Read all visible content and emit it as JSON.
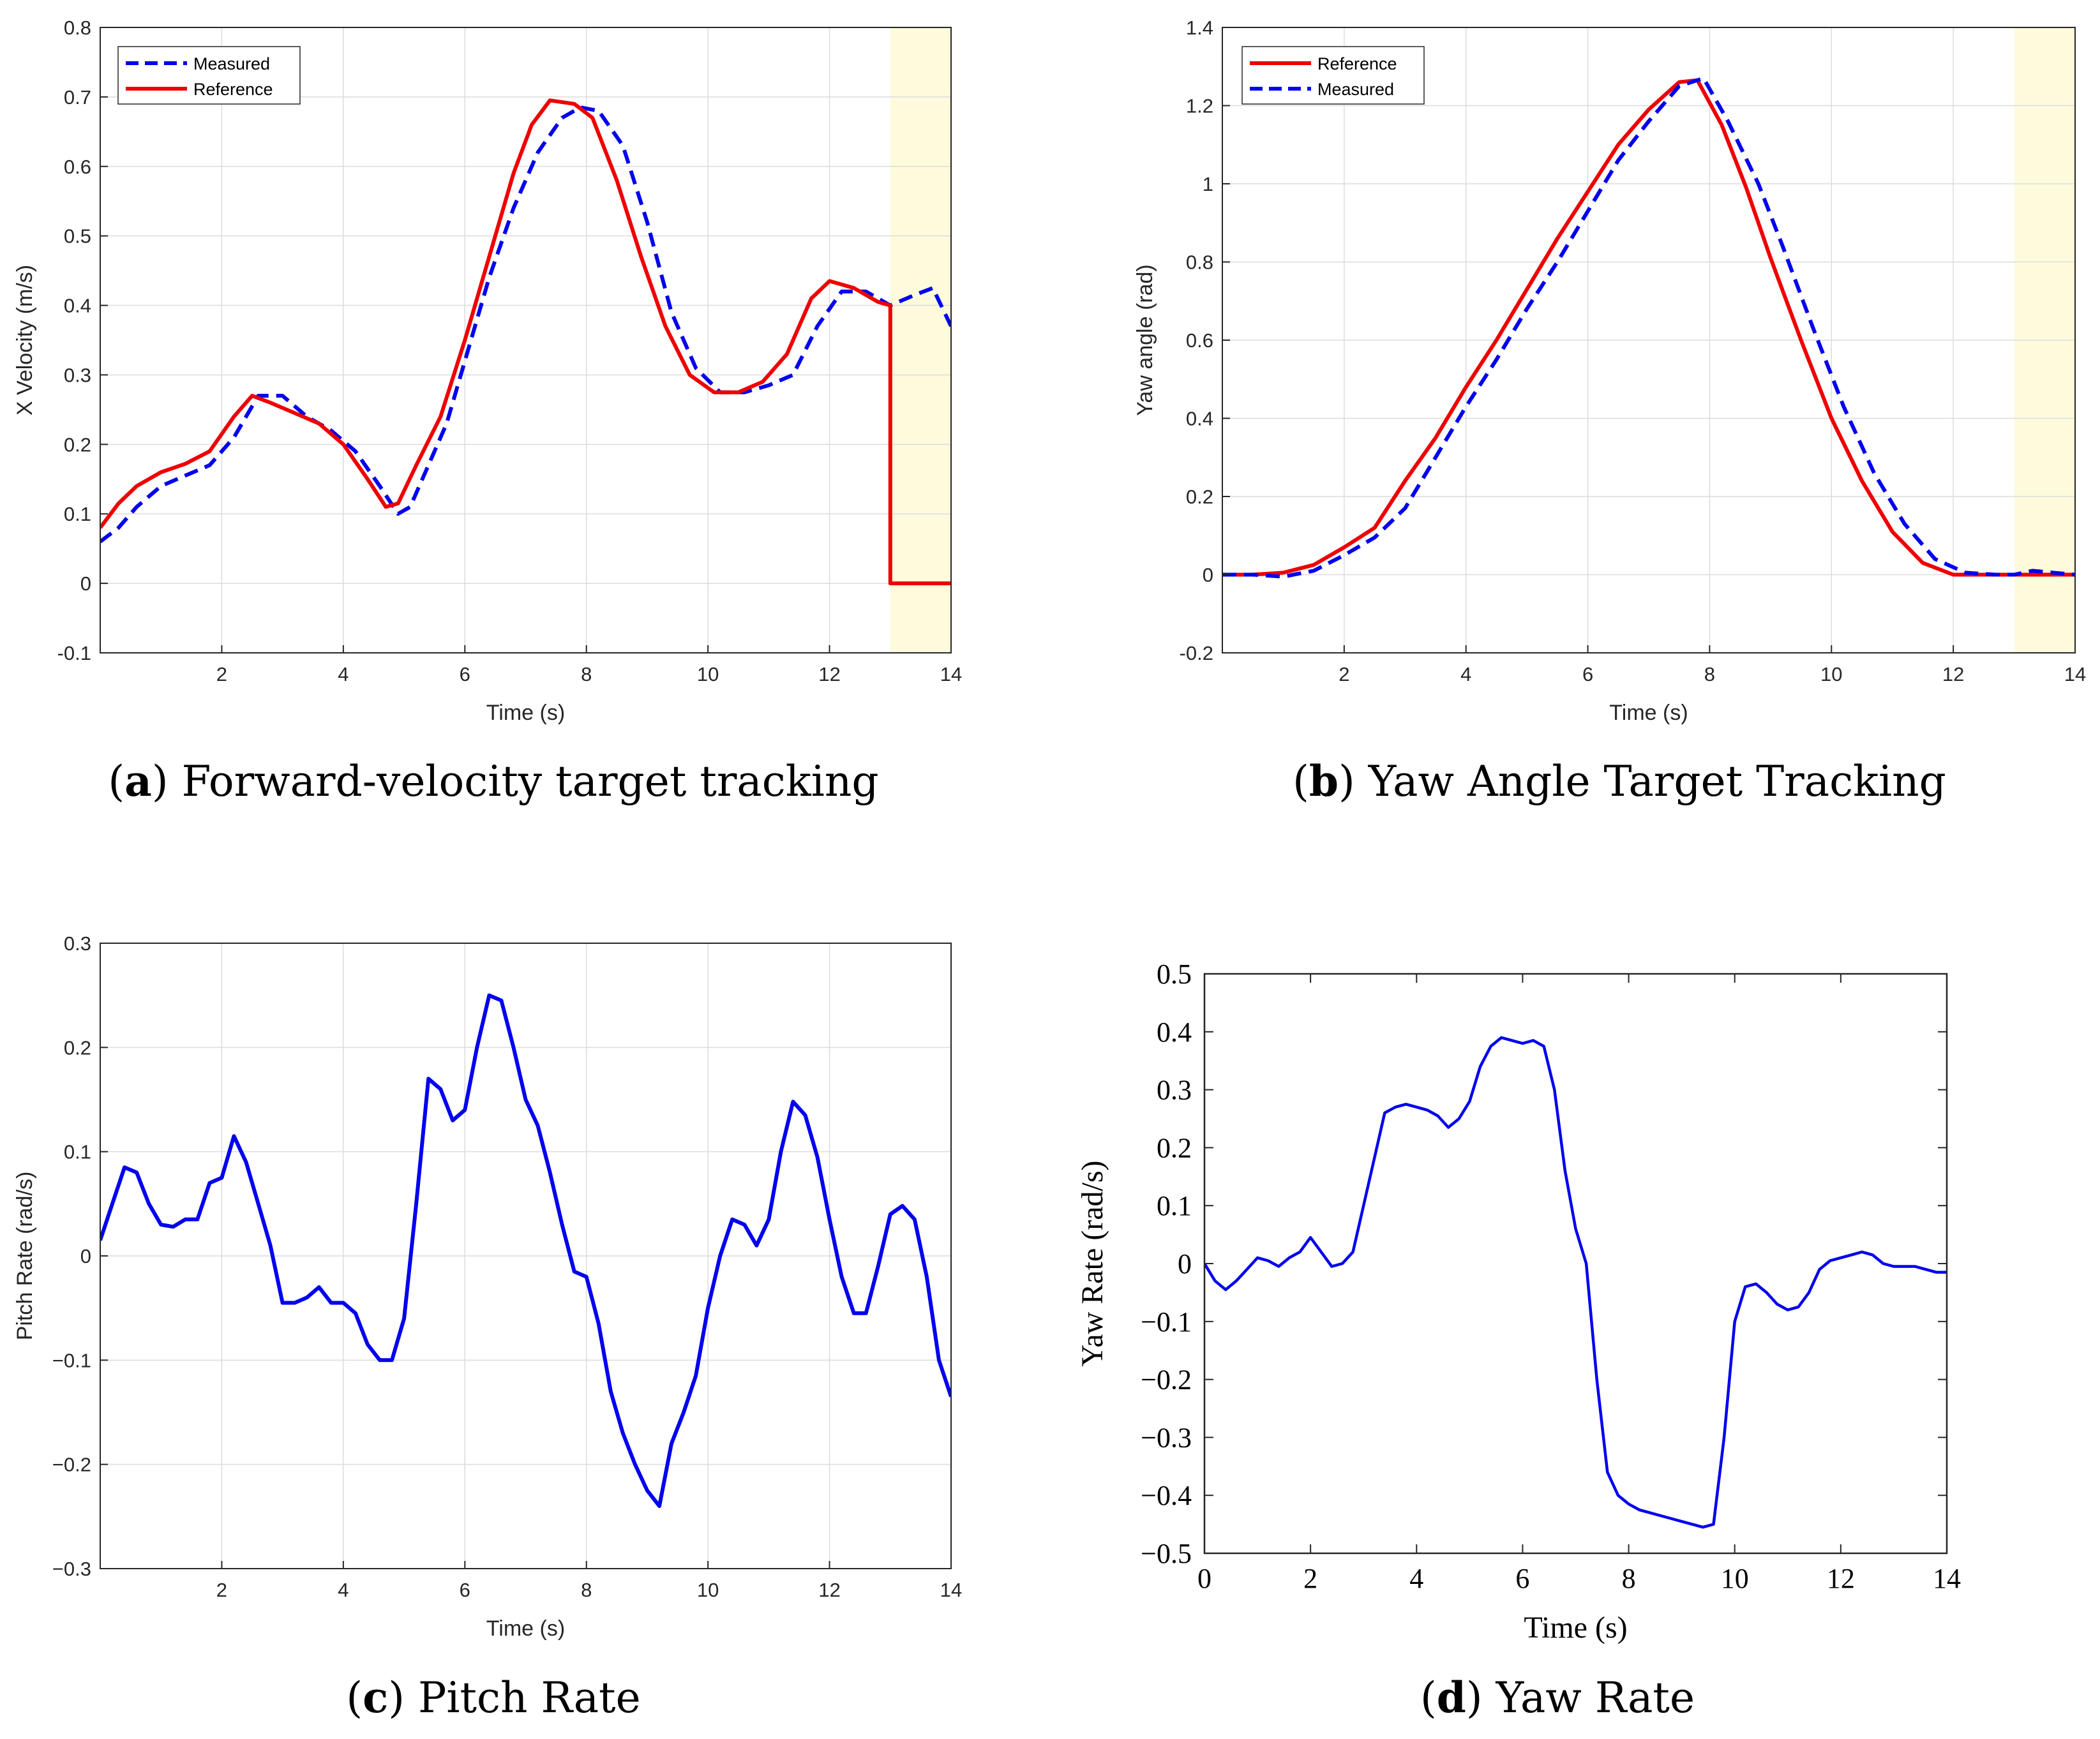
{
  "colors": {
    "measured": "#0000ee",
    "reference": "#ee0000",
    "grid": "#dcdcdc",
    "highlight": "#fdfbdc",
    "axis": "#262626"
  },
  "chart_data": [
    {
      "id": "a",
      "type": "line",
      "caption": {
        "label": "a",
        "text": "Forward-velocity target tracking"
      },
      "xlabel": "Time (s)",
      "ylabel": "X Velocity (m/s)",
      "xlim": [
        0,
        14
      ],
      "ylim": [
        -0.1,
        0.8
      ],
      "xticks": [
        2,
        4,
        6,
        8,
        10,
        12,
        14
      ],
      "xtick_labels": [
        "2",
        "4",
        "6",
        "8",
        "10",
        "12",
        "14"
      ],
      "yticks": [
        -0.1,
        0,
        0.1,
        0.2,
        0.3,
        0.4,
        0.5,
        0.6,
        0.7,
        0.8
      ],
      "ytick_labels": [
        "-0.1",
        "0",
        "0.1",
        "0.2",
        "0.3",
        "0.4",
        "0.5",
        "0.6",
        "0.7",
        "0.8"
      ],
      "grid": true,
      "legend_position": "top-left",
      "highlight_x": [
        13,
        14
      ],
      "series": [
        {
          "name": "Measured",
          "style": "dashed",
          "color": "#0000ee",
          "x": [
            0,
            0.3,
            0.6,
            1.0,
            1.4,
            1.8,
            2.2,
            2.6,
            3.0,
            3.4,
            3.8,
            4.2,
            4.6,
            4.9,
            5.1,
            5.4,
            5.7,
            6.0,
            6.4,
            6.8,
            7.2,
            7.6,
            7.9,
            8.2,
            8.6,
            9.0,
            9.4,
            9.8,
            10.2,
            10.6,
            11.0,
            11.4,
            11.8,
            12.2,
            12.6,
            13.0,
            13.4,
            13.7,
            14.0
          ],
          "y": [
            0.06,
            0.08,
            0.11,
            0.14,
            0.155,
            0.17,
            0.21,
            0.27,
            0.27,
            0.24,
            0.22,
            0.19,
            0.14,
            0.1,
            0.11,
            0.17,
            0.23,
            0.32,
            0.44,
            0.54,
            0.62,
            0.67,
            0.685,
            0.68,
            0.63,
            0.52,
            0.39,
            0.31,
            0.275,
            0.275,
            0.285,
            0.3,
            0.37,
            0.42,
            0.42,
            0.4,
            0.415,
            0.425,
            0.37
          ]
        },
        {
          "name": "Reference",
          "style": "solid",
          "color": "#ee0000",
          "x": [
            0,
            0.3,
            0.6,
            1.0,
            1.4,
            1.8,
            2.2,
            2.5,
            2.8,
            3.2,
            3.6,
            4.0,
            4.4,
            4.7,
            4.9,
            5.2,
            5.6,
            6.0,
            6.4,
            6.8,
            7.1,
            7.4,
            7.8,
            8.1,
            8.5,
            8.9,
            9.3,
            9.7,
            10.1,
            10.5,
            10.9,
            11.3,
            11.7,
            12.0,
            12.4,
            12.8,
            13.0,
            13.0,
            14.0
          ],
          "y": [
            0.08,
            0.115,
            0.14,
            0.16,
            0.172,
            0.19,
            0.24,
            0.27,
            0.26,
            0.245,
            0.23,
            0.2,
            0.15,
            0.11,
            0.115,
            0.17,
            0.24,
            0.35,
            0.47,
            0.59,
            0.66,
            0.695,
            0.69,
            0.67,
            0.58,
            0.47,
            0.37,
            0.3,
            0.275,
            0.275,
            0.29,
            0.33,
            0.41,
            0.435,
            0.425,
            0.405,
            0.4,
            0.0,
            0.0
          ]
        }
      ]
    },
    {
      "id": "b",
      "type": "line",
      "caption": {
        "label": "b",
        "text": "Yaw Angle Target Tracking"
      },
      "xlabel": "Time (s)",
      "ylabel": "Yaw angle (rad)",
      "xlim": [
        0,
        14
      ],
      "ylim": [
        -0.2,
        1.4
      ],
      "xticks": [
        2,
        4,
        6,
        8,
        10,
        12,
        14
      ],
      "xtick_labels": [
        "2",
        "4",
        "6",
        "8",
        "10",
        "12",
        "14"
      ],
      "yticks": [
        -0.2,
        0,
        0.2,
        0.4,
        0.6,
        0.8,
        1,
        1.2,
        1.4
      ],
      "ytick_labels": [
        "-0.2",
        "0",
        "0.2",
        "0.4",
        "0.6",
        "0.8",
        "1",
        "1.2",
        "1.4"
      ],
      "grid": true,
      "legend_position": "top-left",
      "highlight_x": [
        13,
        14
      ],
      "series": [
        {
          "name": "Reference",
          "style": "solid",
          "color": "#ee0000",
          "x": [
            0,
            0.5,
            1.0,
            1.5,
            2.0,
            2.5,
            3.0,
            3.5,
            4.0,
            4.5,
            5.0,
            5.5,
            6.0,
            6.5,
            7.0,
            7.5,
            7.8,
            8.2,
            8.6,
            9.0,
            9.5,
            10.0,
            10.5,
            11.0,
            11.5,
            12.0,
            12.5,
            13.0,
            14.0
          ],
          "y": [
            0,
            0,
            0.005,
            0.025,
            0.07,
            0.12,
            0.24,
            0.35,
            0.48,
            0.6,
            0.73,
            0.86,
            0.98,
            1.1,
            1.19,
            1.26,
            1.265,
            1.15,
            0.99,
            0.81,
            0.6,
            0.4,
            0.24,
            0.11,
            0.03,
            0.0,
            0.0,
            0.0,
            0.0
          ]
        },
        {
          "name": "Measured",
          "style": "dashed",
          "color": "#0000ee",
          "x": [
            0,
            0.5,
            1.0,
            1.5,
            2.0,
            2.5,
            3.0,
            3.5,
            4.0,
            4.5,
            5.0,
            5.5,
            6.0,
            6.5,
            7.0,
            7.5,
            7.9,
            8.3,
            8.8,
            9.2,
            9.7,
            10.2,
            10.7,
            11.2,
            11.7,
            12.2,
            12.7,
            13.0,
            13.3,
            14.0
          ],
          "y": [
            0,
            0,
            -0.005,
            0.01,
            0.05,
            0.095,
            0.17,
            0.3,
            0.43,
            0.55,
            0.68,
            0.8,
            0.93,
            1.06,
            1.16,
            1.25,
            1.27,
            1.16,
            1.0,
            0.84,
            0.63,
            0.43,
            0.26,
            0.13,
            0.04,
            0.005,
            0.0,
            0.0,
            0.01,
            0.0
          ]
        }
      ]
    },
    {
      "id": "c",
      "type": "line",
      "caption": {
        "label": "c",
        "text": "Pitch Rate"
      },
      "xlabel": "Time (s)",
      "ylabel": "Pitch Rate (rad/s)",
      "xlim": [
        0,
        14
      ],
      "ylim": [
        -0.3,
        0.3
      ],
      "xticks": [
        2,
        4,
        6,
        8,
        10,
        12,
        14
      ],
      "xtick_labels": [
        "2",
        "4",
        "6",
        "8",
        "10",
        "12",
        "14"
      ],
      "yticks": [
        -0.3,
        -0.2,
        -0.1,
        0,
        0.1,
        0.2,
        0.3
      ],
      "ytick_labels": [
        "−0.3",
        "−0.2",
        "−0.1",
        "0",
        "0.1",
        "0.2",
        "0.3"
      ],
      "grid": true,
      "series": [
        {
          "name": "Pitch Rate",
          "style": "solid",
          "color": "#0000ee",
          "x": [
            0,
            0.2,
            0.4,
            0.6,
            0.8,
            1.0,
            1.2,
            1.4,
            1.6,
            1.8,
            2.0,
            2.2,
            2.4,
            2.6,
            2.8,
            3.0,
            3.2,
            3.4,
            3.6,
            3.8,
            4.0,
            4.2,
            4.4,
            4.6,
            4.8,
            5.0,
            5.2,
            5.4,
            5.6,
            5.8,
            6.0,
            6.2,
            6.4,
            6.6,
            6.8,
            7.0,
            7.2,
            7.4,
            7.6,
            7.8,
            8.0,
            8.2,
            8.4,
            8.6,
            8.8,
            9.0,
            9.2,
            9.4,
            9.6,
            9.8,
            10.0,
            10.2,
            10.4,
            10.6,
            10.8,
            11.0,
            11.2,
            11.4,
            11.6,
            11.8,
            12.0,
            12.2,
            12.4,
            12.6,
            12.8,
            13.0,
            13.2,
            13.4,
            13.6,
            13.8,
            14.0
          ],
          "y": [
            0.015,
            0.05,
            0.085,
            0.08,
            0.05,
            0.03,
            0.028,
            0.035,
            0.035,
            0.07,
            0.075,
            0.115,
            0.09,
            0.05,
            0.01,
            -0.045,
            -0.045,
            -0.04,
            -0.03,
            -0.045,
            -0.045,
            -0.055,
            -0.085,
            -0.1,
            -0.1,
            -0.06,
            0.05,
            0.17,
            0.16,
            0.13,
            0.14,
            0.2,
            0.25,
            0.245,
            0.2,
            0.15,
            0.125,
            0.08,
            0.03,
            -0.015,
            -0.02,
            -0.065,
            -0.13,
            -0.17,
            -0.2,
            -0.225,
            -0.24,
            -0.18,
            -0.15,
            -0.115,
            -0.05,
            0.0,
            0.035,
            0.03,
            0.01,
            0.035,
            0.1,
            0.148,
            0.135,
            0.095,
            0.035,
            -0.02,
            -0.055,
            -0.055,
            -0.01,
            0.04,
            0.048,
            0.035,
            -0.02,
            -0.1,
            -0.135
          ]
        }
      ]
    },
    {
      "id": "d",
      "type": "line",
      "caption": {
        "label": "d",
        "text": "Yaw Rate"
      },
      "xlabel": "Time (s)",
      "ylabel": "Yaw Rate (rad/s)",
      "xlim": [
        0,
        14
      ],
      "ylim": [
        -0.5,
        0.5
      ],
      "xticks": [
        0,
        2,
        4,
        6,
        8,
        10,
        12,
        14
      ],
      "xtick_labels": [
        "0",
        "2",
        "4",
        "6",
        "8",
        "10",
        "12",
        "14"
      ],
      "yticks": [
        -0.5,
        -0.4,
        -0.3,
        -0.2,
        -0.1,
        0,
        0.1,
        0.2,
        0.3,
        0.4,
        0.5
      ],
      "ytick_labels": [
        "−0.5",
        "−0.4",
        "−0.3",
        "−0.2",
        "−0.1",
        "0",
        "0.1",
        "0.2",
        "0.3",
        "0.4",
        "0.5"
      ],
      "grid": false,
      "series": [
        {
          "name": "Yaw Rate",
          "style": "solid",
          "color": "#0000ee",
          "x": [
            0,
            0.2,
            0.4,
            0.6,
            0.8,
            1.0,
            1.2,
            1.4,
            1.6,
            1.8,
            2.0,
            2.2,
            2.4,
            2.6,
            2.8,
            3.0,
            3.2,
            3.4,
            3.6,
            3.8,
            4.0,
            4.2,
            4.4,
            4.6,
            4.8,
            5.0,
            5.2,
            5.4,
            5.6,
            5.8,
            6.0,
            6.2,
            6.4,
            6.6,
            6.8,
            7.0,
            7.2,
            7.4,
            7.6,
            7.8,
            8.0,
            8.2,
            8.4,
            8.6,
            8.8,
            9.0,
            9.2,
            9.4,
            9.6,
            9.8,
            10.0,
            10.2,
            10.4,
            10.6,
            10.8,
            11.0,
            11.2,
            11.4,
            11.6,
            11.8,
            12.0,
            12.2,
            12.4,
            12.6,
            12.8,
            13.0,
            13.2,
            13.4,
            13.6,
            13.8,
            14.0
          ],
          "y": [
            0.0,
            -0.03,
            -0.045,
            -0.03,
            -0.01,
            0.01,
            0.005,
            -0.005,
            0.01,
            0.02,
            0.045,
            0.02,
            -0.005,
            0.0,
            0.02,
            0.1,
            0.18,
            0.26,
            0.27,
            0.275,
            0.27,
            0.265,
            0.255,
            0.235,
            0.25,
            0.28,
            0.34,
            0.375,
            0.39,
            0.385,
            0.38,
            0.385,
            0.375,
            0.3,
            0.16,
            0.06,
            0.0,
            -0.2,
            -0.36,
            -0.4,
            -0.415,
            -0.425,
            -0.43,
            -0.435,
            -0.44,
            -0.445,
            -0.45,
            -0.455,
            -0.45,
            -0.3,
            -0.1,
            -0.04,
            -0.035,
            -0.05,
            -0.07,
            -0.08,
            -0.075,
            -0.05,
            -0.01,
            0.005,
            0.01,
            0.015,
            0.02,
            0.015,
            0.0,
            -0.005,
            -0.005,
            -0.005,
            -0.01,
            -0.015,
            -0.015
          ]
        }
      ]
    }
  ]
}
